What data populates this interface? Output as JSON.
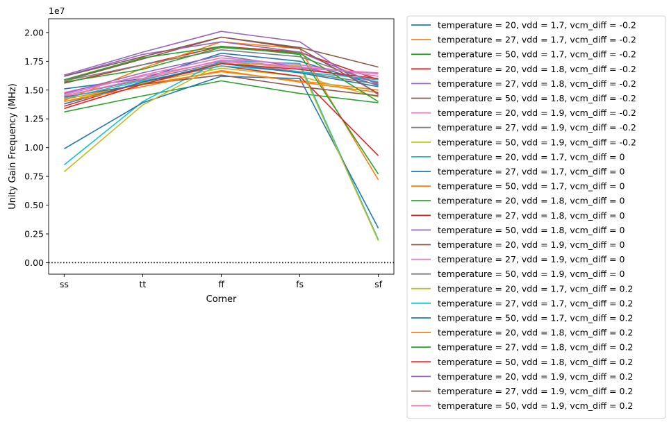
{
  "chart_data": {
    "type": "line",
    "title": "",
    "xlabel": "Corner",
    "ylabel": "Unity Gain Frequency (MHz)",
    "y_offset_text": "1e7",
    "categories": [
      "ss",
      "tt",
      "ff",
      "fs",
      "sf"
    ],
    "ylim": [
      -1000000,
      21200000
    ],
    "y_ticks": [
      0,
      2500000,
      5000000,
      7500000,
      10000000,
      12500000,
      15000000,
      17500000,
      20000000
    ],
    "y_tick_labels": [
      "0.00",
      "0.25",
      "0.50",
      "0.75",
      "1.00",
      "1.25",
      "1.50",
      "1.75",
      "2.00"
    ],
    "grid": false,
    "legend_position": "outside-right",
    "reference_line": {
      "y": 0,
      "style": "dotted",
      "color": "#000000"
    },
    "series": [
      {
        "name": "temperature = 20, vdd = 1.7, vcm_diff = -0.2",
        "color": "#1f77b4",
        "values": [
          15100000,
          16000000,
          18200000,
          17500000,
          15400000
        ]
      },
      {
        "name": "temperature = 27, vdd = 1.7, vcm_diff = -0.2",
        "color": "#ff7f0e",
        "values": [
          14200000,
          15500000,
          16600000,
          15800000,
          15000000
        ]
      },
      {
        "name": "temperature = 50, vdd = 1.7, vcm_diff = -0.2",
        "color": "#2ca02c",
        "values": [
          13100000,
          14500000,
          15800000,
          14700000,
          13900000
        ]
      },
      {
        "name": "temperature = 20, vdd = 1.8, vcm_diff = -0.2",
        "color": "#d62728",
        "values": [
          15600000,
          17200000,
          18800000,
          18300000,
          15900000
        ]
      },
      {
        "name": "temperature = 27, vdd = 1.8, vcm_diff = -0.2",
        "color": "#9467bd",
        "values": [
          16300000,
          18300000,
          20100000,
          19200000,
          14600000
        ]
      },
      {
        "name": "temperature = 50, vdd = 1.8, vcm_diff = -0.2",
        "color": "#8c564b",
        "values": [
          15800000,
          17700000,
          19600000,
          18700000,
          17000000
        ]
      },
      {
        "name": "temperature = 20, vdd = 1.9, vcm_diff = -0.2",
        "color": "#e377c2",
        "values": [
          14800000,
          16200000,
          17500000,
          16900000,
          16500000
        ]
      },
      {
        "name": "temperature = 27, vdd = 1.9, vcm_diff = -0.2",
        "color": "#7f7f7f",
        "values": [
          14500000,
          15900000,
          17400000,
          16600000,
          15500000
        ]
      },
      {
        "name": "temperature = 50, vdd = 1.9, vcm_diff = -0.2",
        "color": "#bcbd22",
        "values": [
          14000000,
          15600000,
          16900000,
          16200000,
          14400000
        ]
      },
      {
        "name": "temperature = 20, vdd = 1.7, vcm_diff = 0",
        "color": "#17becf",
        "values": [
          8500000,
          14000000,
          17600000,
          17300000,
          2000000
        ]
      },
      {
        "name": "temperature = 27, vdd = 1.7, vcm_diff = 0",
        "color": "#1f77b4",
        "values": [
          9900000,
          13900000,
          16200000,
          16000000,
          3000000
        ]
      },
      {
        "name": "temperature = 50, vdd = 1.7, vcm_diff = 0",
        "color": "#ff7f0e",
        "values": [
          14100000,
          16900000,
          19200000,
          18600000,
          7200000
        ]
      },
      {
        "name": "temperature = 20, vdd = 1.8, vcm_diff = 0",
        "color": "#2ca02c",
        "values": [
          15900000,
          17800000,
          18800000,
          18100000,
          7700000
        ]
      },
      {
        "name": "temperature = 27, vdd = 1.8, vcm_diff = 0",
        "color": "#d62728",
        "values": [
          13600000,
          15700000,
          17100000,
          16200000,
          9300000
        ]
      },
      {
        "name": "temperature = 50, vdd = 1.8, vcm_diff = 0",
        "color": "#9467bd",
        "values": [
          14700000,
          16500000,
          18000000,
          17000000,
          15700000
        ]
      },
      {
        "name": "temperature = 20, vdd = 1.9, vcm_diff = 0",
        "color": "#8c564b",
        "values": [
          14400000,
          15500000,
          16300000,
          15300000,
          14500000
        ]
      },
      {
        "name": "temperature = 27, vdd = 1.9, vcm_diff = 0",
        "color": "#e377c2",
        "values": [
          14600000,
          16300000,
          17800000,
          17200000,
          16200000
        ]
      },
      {
        "name": "temperature = 50, vdd = 1.9, vcm_diff = 0",
        "color": "#7f7f7f",
        "values": [
          15800000,
          17200000,
          18500000,
          17900000,
          15600000
        ]
      },
      {
        "name": "temperature = 20, vdd = 1.7, vcm_diff = 0.2",
        "color": "#bcbd22",
        "values": [
          7900000,
          13700000,
          17300000,
          17100000,
          1900000
        ]
      },
      {
        "name": "temperature = 27, vdd = 1.7, vcm_diff = 0.2",
        "color": "#17becf",
        "values": [
          14300000,
          15800000,
          17100000,
          16600000,
          15900000
        ]
      },
      {
        "name": "temperature = 50, vdd = 1.7, vcm_diff = 0.2",
        "color": "#1f77b4",
        "values": [
          13800000,
          15700000,
          17300000,
          16500000,
          15300000
        ]
      },
      {
        "name": "temperature = 20, vdd = 1.8, vcm_diff = 0.2",
        "color": "#ff7f0e",
        "values": [
          14000000,
          15300000,
          16700000,
          15700000,
          14800000
        ]
      },
      {
        "name": "temperature = 27, vdd = 1.8, vcm_diff = 0.2",
        "color": "#2ca02c",
        "values": [
          15700000,
          16800000,
          18700000,
          18200000,
          14000000
        ]
      },
      {
        "name": "temperature = 50, vdd = 1.8, vcm_diff = 0.2",
        "color": "#d62728",
        "values": [
          13400000,
          15500000,
          17300000,
          16800000,
          16000000
        ]
      },
      {
        "name": "temperature = 20, vdd = 1.9, vcm_diff = 0.2",
        "color": "#9467bd",
        "values": [
          16200000,
          18100000,
          19200000,
          18300000,
          15500000
        ]
      },
      {
        "name": "temperature = 27, vdd = 1.9, vcm_diff = 0.2",
        "color": "#8c564b",
        "values": [
          16200000,
          17900000,
          19600000,
          18600000,
          14700000
        ]
      },
      {
        "name": "temperature = 50, vdd = 1.9, vcm_diff = 0.2",
        "color": "#e377c2",
        "values": [
          14500000,
          16000000,
          17600000,
          17000000,
          16400000
        ]
      }
    ]
  }
}
